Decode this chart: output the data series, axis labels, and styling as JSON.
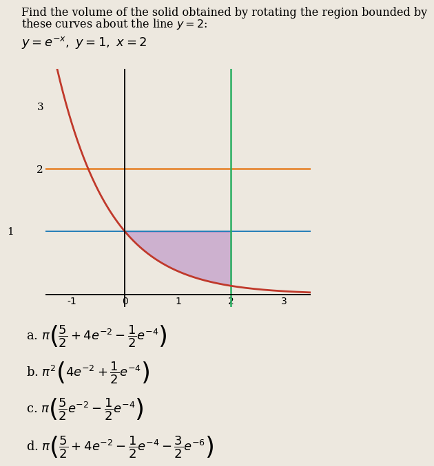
{
  "title_line1": "Find the volume of the solid obtained by rotating the region bounded by",
  "title_line2": "these curves about the line $y = 2$:",
  "equation_label": "$y = e^{-x},\\ y = 1,\\ x = 2$",
  "xlim": [
    -1.5,
    3.5
  ],
  "ylim": [
    -0.2,
    3.6
  ],
  "xticks": [
    -1,
    0,
    1,
    2,
    3
  ],
  "yticks": [
    2,
    3
  ],
  "curve_color": "#c0392b",
  "line_y1_color": "#2980b9",
  "line_y2_color": "#e67e22",
  "line_x2_color": "#27ae60",
  "fill_color": "#9b59b6",
  "fill_alpha": 0.38,
  "bg_color": "#ede8df",
  "tick_fontsize": 11,
  "answers": [
    "a. $\\pi \\left(\\dfrac{5}{2} + 4e^{-2} - \\dfrac{1}{2}e^{-4}\\right)$",
    "b. $\\pi^2 \\left(4e^{-2} + \\dfrac{1}{2}e^{-4}\\right)$",
    "c. $\\pi \\left(\\dfrac{5}{2}e^{-2} - \\dfrac{1}{2}e^{-4}\\right)$",
    "d. $\\pi \\left(\\dfrac{5}{2} + 4e^{-2} - \\dfrac{1}{2}e^{-4} - \\dfrac{3}{2}e^{-6}\\right)$"
  ],
  "answer_fontsize": 13
}
